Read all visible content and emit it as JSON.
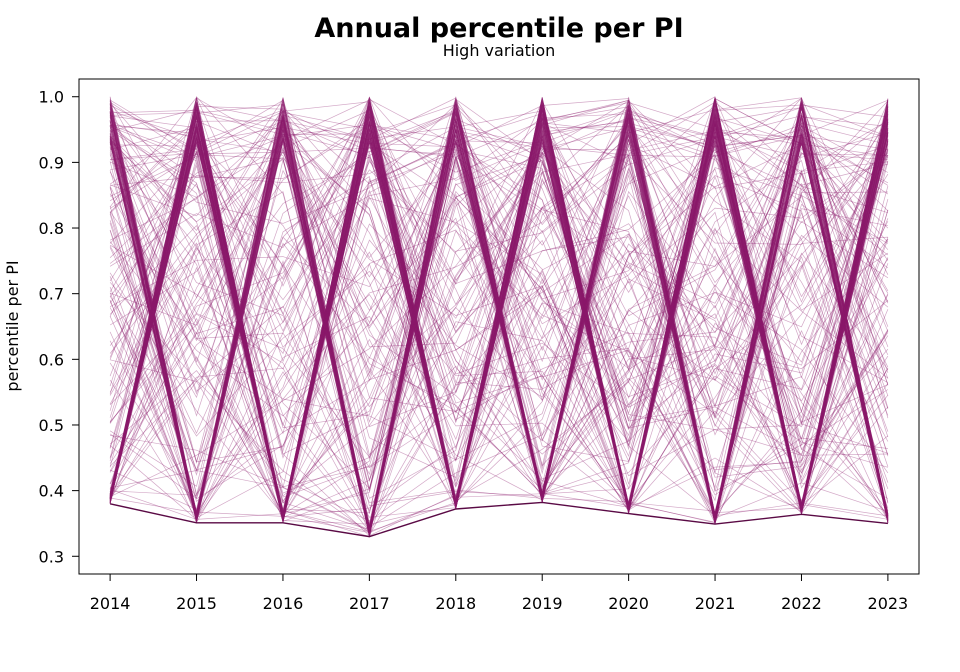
{
  "chart_data": {
    "type": "line",
    "title": "Annual percentile per PI",
    "subtitle": "High variation",
    "xlabel": "",
    "ylabel": "percentile per PI",
    "x": [
      2014,
      2015,
      2016,
      2017,
      2018,
      2019,
      2020,
      2021,
      2022,
      2023
    ],
    "x_tick_labels": [
      "2014",
      "2015",
      "2016",
      "2017",
      "2018",
      "2019",
      "2020",
      "2021",
      "2022",
      "2023"
    ],
    "y_ticks": [
      0.3,
      0.4,
      0.5,
      0.6,
      0.7,
      0.8,
      0.9,
      1.0
    ],
    "y_tick_labels": [
      "0.3",
      "0.4",
      "0.5",
      "0.6",
      "0.7",
      "0.8",
      "0.9",
      "1.0"
    ],
    "xlim": [
      2013.64,
      2023.36
    ],
    "ylim": [
      0.273,
      1.027
    ],
    "grid": false,
    "legend": "none",
    "line_color": "#8b1a6b",
    "annual_minimum": [
      0.38,
      0.351,
      0.351,
      0.33,
      0.372,
      0.382,
      0.365,
      0.349,
      0.364,
      0.35
    ],
    "series_count": 320,
    "series_seed": 20230717
  }
}
